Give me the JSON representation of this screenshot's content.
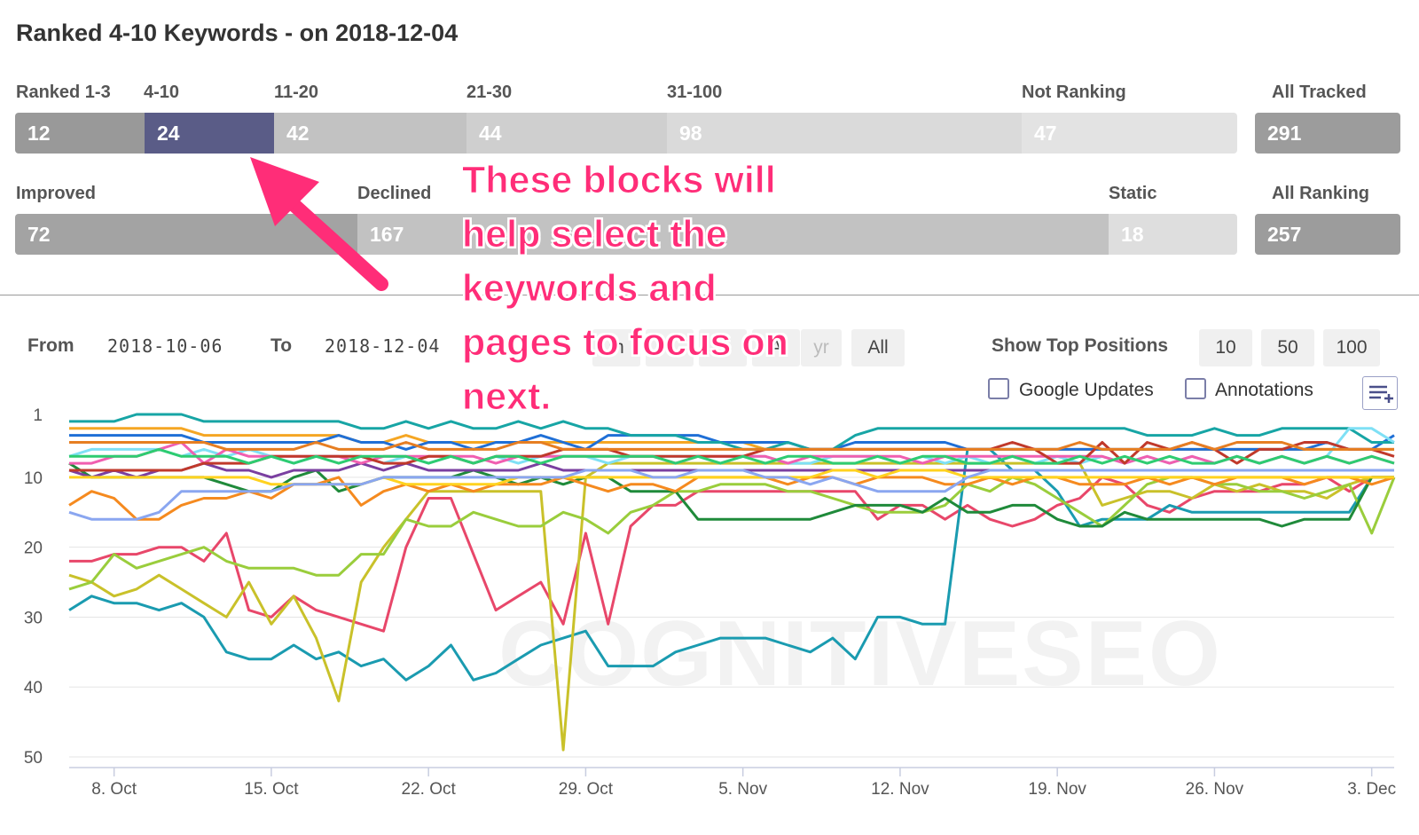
{
  "title": "Ranked 4-10 Keywords - on 2018-12-04",
  "ranking_blocks": [
    {
      "label": "Ranked 1-3",
      "value": "12",
      "color": "#999999"
    },
    {
      "label": "4-10",
      "value": "24",
      "color": "#5a5c87"
    },
    {
      "label": "11-20",
      "value": "42",
      "color": "#c2c2c2"
    },
    {
      "label": "21-30",
      "value": "44",
      "color": "#cfcfcf"
    },
    {
      "label": "31-100",
      "value": "98",
      "color": "#dadada"
    },
    {
      "label": "Not Ranking",
      "value": "47",
      "color": "#e3e3e3"
    }
  ],
  "all_tracked": {
    "label": "All Tracked",
    "value": "291",
    "color": "#9c9c9c"
  },
  "change_blocks": [
    {
      "label": "Improved",
      "value": "72",
      "color": "#a3a3a3"
    },
    {
      "label": "Declined",
      "value": "167",
      "color": "#c2c2c2"
    },
    {
      "label": "Static",
      "value": "18",
      "color": "#dedede"
    }
  ],
  "all_ranking": {
    "label": "All Ranking",
    "value": "257",
    "color": "#9c9c9c"
  },
  "date_range": {
    "from_label": "From",
    "from_value": "2018-10-06",
    "to_label": "To",
    "to_value": "2018-12-04"
  },
  "period_buttons": [
    {
      "label": "m"
    },
    {
      "label": ""
    },
    {
      "label": ""
    },
    {
      "label": "A"
    },
    {
      "label": "yr"
    },
    {
      "label": "All"
    }
  ],
  "top_positions": {
    "label": "Show Top Positions",
    "options": [
      "10",
      "50",
      "100"
    ]
  },
  "toggles": {
    "google_updates": "Google Updates",
    "annotations": "Annotations"
  },
  "watermark": "COGNITIVESEO",
  "annotation_text": [
    "These blocks will",
    "help select the",
    "keywords and",
    "pages to focus on",
    "next."
  ],
  "annotation_color": "#ff2d78",
  "chart_data": {
    "type": "line",
    "x_labels": [
      "8. Oct",
      "15. Oct",
      "22. Oct",
      "29. Oct",
      "5. Nov",
      "12. Nov",
      "19. Nov",
      "26. Nov",
      "3. Dec"
    ],
    "x_range": [
      "2018-10-06",
      "2018-12-04"
    ],
    "y_ticks": [
      1,
      10,
      20,
      30,
      40,
      50
    ],
    "ylim": [
      1,
      50
    ],
    "y_reversed": true,
    "grid": true,
    "series": [
      {
        "color": "#e8476a",
        "values": [
          22,
          22,
          21,
          21,
          20,
          20,
          22,
          18,
          29,
          30,
          27,
          29,
          30,
          31,
          32,
          20,
          13,
          13,
          21,
          29,
          27,
          25,
          31,
          18,
          31,
          17,
          14,
          14,
          12,
          12,
          12,
          12,
          12,
          12,
          12,
          12,
          16,
          14,
          14,
          16,
          14,
          16,
          17,
          16,
          14,
          13,
          10,
          11,
          14,
          15,
          13,
          12,
          12,
          12,
          11,
          11,
          10,
          12,
          10,
          10
        ]
      },
      {
        "color": "#1a9bb0",
        "values": [
          29,
          27,
          28,
          28,
          29,
          28,
          30,
          35,
          36,
          36,
          34,
          36,
          35,
          37,
          36,
          39,
          37,
          34,
          39,
          38,
          36,
          34,
          33,
          32,
          37,
          37,
          37,
          35,
          34,
          33,
          33,
          33,
          34,
          35,
          33,
          36,
          30,
          30,
          31,
          31,
          6,
          6,
          9,
          9,
          12,
          17,
          16,
          16,
          16,
          14,
          15,
          15,
          15,
          15,
          15,
          15,
          15,
          15,
          10,
          10
        ]
      },
      {
        "color": "#c9c12a",
        "values": [
          24,
          25,
          27,
          26,
          24,
          26,
          28,
          30,
          25,
          31,
          27,
          33,
          42,
          25,
          20,
          16,
          12,
          12,
          12,
          12,
          12,
          12,
          49,
          10,
          8,
          8,
          8,
          8,
          8,
          8,
          8,
          8,
          8,
          8,
          8,
          8,
          8,
          8,
          8,
          8,
          8,
          8,
          8,
          8,
          8,
          8,
          14,
          13,
          12,
          12,
          13,
          11,
          12,
          11,
          12,
          12,
          13,
          11,
          10,
          10
        ]
      },
      {
        "color": "#9acd3c",
        "values": [
          26,
          25,
          21,
          23,
          22,
          21,
          20,
          22,
          23,
          23,
          23,
          24,
          24,
          21,
          21,
          16,
          17,
          17,
          15,
          16,
          17,
          17,
          15,
          16,
          18,
          15,
          14,
          12,
          12,
          11,
          11,
          11,
          12,
          12,
          13,
          14,
          15,
          15,
          15,
          14,
          11,
          12,
          10,
          11,
          13,
          15,
          17,
          14,
          11,
          10,
          10,
          11,
          11,
          12,
          12,
          13,
          12,
          11,
          18,
          10
        ]
      },
      {
        "color": "#1f8a3a",
        "values": [
          8,
          10,
          10,
          10,
          10,
          10,
          10,
          11,
          12,
          12,
          10,
          9,
          12,
          11,
          10,
          10,
          10,
          10,
          9,
          10,
          11,
          10,
          11,
          10,
          10,
          12,
          12,
          12,
          16,
          16,
          16,
          16,
          16,
          16,
          15,
          14,
          14,
          14,
          15,
          13,
          15,
          15,
          14,
          14,
          16,
          17,
          17,
          15,
          16,
          16,
          16,
          16,
          16,
          16,
          17,
          16,
          16,
          16,
          10,
          10
        ]
      },
      {
        "color": "#f58a1f",
        "values": [
          14,
          12,
          13,
          16,
          16,
          14,
          13,
          13,
          12,
          13,
          11,
          11,
          10,
          14,
          12,
          11,
          12,
          11,
          12,
          11,
          11,
          11,
          10,
          11,
          12,
          11,
          11,
          12,
          10,
          10,
          10,
          10,
          11,
          10,
          10,
          11,
          10,
          10,
          10,
          11,
          11,
          10,
          11,
          10,
          10,
          11,
          11,
          11,
          10,
          11,
          10,
          11,
          10,
          10,
          10,
          11,
          10,
          10,
          11,
          10
        ]
      },
      {
        "color": "#f5a623",
        "values": [
          3,
          3,
          3,
          3,
          3,
          3,
          4,
          4,
          4,
          4,
          4,
          4,
          4,
          5,
          5,
          4,
          5,
          5,
          5,
          5,
          5,
          5,
          5,
          5,
          5,
          5,
          5,
          5,
          5,
          5,
          5,
          6,
          6,
          6,
          6,
          6,
          6,
          6,
          6,
          6,
          6,
          6,
          6,
          6,
          6,
          6,
          6,
          6,
          6,
          6,
          6,
          6,
          6,
          6,
          6,
          6,
          6,
          6,
          6,
          6
        ]
      },
      {
        "color": "#1f6fd6",
        "values": [
          4,
          4,
          4,
          4,
          4,
          4,
          5,
          5,
          5,
          5,
          5,
          5,
          4,
          5,
          5,
          6,
          5,
          5,
          6,
          5,
          5,
          4,
          5,
          6,
          4,
          4,
          4,
          4,
          4,
          5,
          5,
          5,
          5,
          6,
          6,
          5,
          5,
          5,
          5,
          5,
          6,
          6,
          6,
          6,
          6,
          6,
          6,
          6,
          6,
          6,
          6,
          6,
          6,
          6,
          6,
          6,
          5,
          6,
          6,
          4
        ]
      },
      {
        "color": "#17a5a5",
        "values": [
          2,
          2,
          2,
          1,
          1,
          1,
          2,
          2,
          2,
          2,
          2,
          2,
          2,
          3,
          3,
          2,
          3,
          2,
          3,
          3,
          2,
          3,
          2,
          3,
          3,
          4,
          4,
          4,
          5,
          5,
          6,
          6,
          5,
          6,
          6,
          4,
          3,
          3,
          3,
          3,
          3,
          3,
          3,
          3,
          3,
          3,
          3,
          3,
          4,
          4,
          4,
          3,
          4,
          4,
          3,
          3,
          3,
          3,
          5,
          5
        ]
      },
      {
        "color": "#7fe0f5",
        "values": [
          7,
          6,
          6,
          6,
          6,
          7,
          6,
          7,
          6,
          7,
          8,
          7,
          7,
          7,
          8,
          7,
          8,
          7,
          8,
          7,
          8,
          7,
          7,
          7,
          8,
          7,
          7,
          7,
          7,
          8,
          7,
          7,
          8,
          8,
          7,
          7,
          7,
          8,
          7,
          8,
          7,
          8,
          7,
          8,
          7,
          8,
          7,
          8,
          7,
          8,
          7,
          8,
          7,
          8,
          7,
          8,
          7,
          3,
          3,
          5
        ]
      },
      {
        "color": "#7a3fa0",
        "values": [
          9,
          10,
          9,
          10,
          9,
          9,
          8,
          9,
          9,
          10,
          9,
          9,
          9,
          8,
          9,
          8,
          9,
          9,
          9,
          9,
          9,
          8,
          9,
          9,
          9,
          9,
          9,
          9,
          9,
          9,
          9,
          9,
          9,
          9,
          9,
          9,
          9,
          9,
          9,
          9,
          9,
          9,
          9,
          9,
          9,
          9,
          9,
          9,
          9,
          9,
          9,
          9,
          9,
          9,
          9,
          9,
          9,
          9,
          9,
          9
        ]
      },
      {
        "color": "#f05fb0",
        "values": [
          8,
          8,
          7,
          7,
          6,
          5,
          8,
          6,
          7,
          7,
          7,
          7,
          7,
          8,
          7,
          7,
          7,
          7,
          7,
          8,
          7,
          7,
          7,
          7,
          7,
          7,
          7,
          8,
          7,
          7,
          7,
          7,
          8,
          7,
          7,
          7,
          7,
          7,
          8,
          7,
          7,
          7,
          7,
          7,
          7,
          7,
          7,
          8,
          7,
          8,
          7,
          8,
          7,
          8,
          7,
          8,
          7,
          8,
          7,
          8
        ]
      },
      {
        "color": "#ffd21f",
        "values": [
          10,
          10,
          10,
          10,
          10,
          10,
          10,
          10,
          10,
          11,
          11,
          11,
          11,
          11,
          10,
          11,
          11,
          11,
          11,
          11,
          10,
          10,
          10,
          10,
          10,
          10,
          10,
          10,
          10,
          10,
          10,
          10,
          10,
          10,
          9,
          9,
          10,
          9,
          9,
          9,
          10,
          10,
          10,
          10,
          10,
          10,
          10,
          10,
          10,
          10,
          10,
          10,
          10,
          10,
          10,
          10,
          10,
          10,
          10,
          10
        ]
      },
      {
        "color": "#8aa6f0",
        "values": [
          15,
          16,
          16,
          16,
          15,
          12,
          12,
          12,
          12,
          12,
          11,
          11,
          11,
          11,
          10,
          10,
          10,
          10,
          10,
          10,
          10,
          10,
          10,
          9,
          9,
          9,
          10,
          10,
          9,
          9,
          9,
          10,
          10,
          11,
          10,
          11,
          12,
          12,
          12,
          12,
          10,
          9,
          9,
          9,
          9,
          9,
          9,
          9,
          9,
          9,
          9,
          9,
          9,
          9,
          9,
          9,
          9,
          9,
          9,
          9
        ]
      },
      {
        "color": "#c0392b",
        "values": [
          9,
          9,
          9,
          9,
          9,
          9,
          8,
          8,
          8,
          7,
          7,
          7,
          7,
          7,
          8,
          8,
          7,
          7,
          8,
          7,
          7,
          7,
          6,
          6,
          6,
          7,
          7,
          7,
          7,
          7,
          7,
          6,
          6,
          6,
          6,
          6,
          6,
          6,
          6,
          6,
          6,
          6,
          5,
          6,
          8,
          8,
          5,
          8,
          5,
          6,
          5,
          6,
          8,
          6,
          6,
          5,
          5,
          6,
          6,
          7
        ]
      },
      {
        "color": "#e67e22",
        "values": [
          5,
          5,
          5,
          5,
          5,
          5,
          5,
          6,
          6,
          6,
          6,
          5,
          6,
          6,
          6,
          5,
          6,
          6,
          6,
          6,
          5,
          5,
          6,
          6,
          6,
          6,
          6,
          6,
          6,
          6,
          6,
          6,
          6,
          6,
          6,
          6,
          6,
          6,
          6,
          6,
          6,
          6,
          6,
          6,
          6,
          5,
          6,
          6,
          6,
          6,
          5,
          6,
          5,
          5,
          5,
          6,
          6,
          6,
          6,
          6
        ]
      },
      {
        "color": "#2ecc71",
        "values": [
          7,
          7,
          7,
          7,
          6,
          7,
          7,
          7,
          8,
          7,
          8,
          7,
          8,
          7,
          7,
          7,
          8,
          7,
          8,
          7,
          7,
          8,
          7,
          7,
          7,
          7,
          7,
          8,
          7,
          8,
          7,
          8,
          7,
          7,
          8,
          8,
          7,
          8,
          7,
          7,
          8,
          8,
          7,
          8,
          8,
          7,
          8,
          7,
          8,
          7,
          8,
          8,
          7,
          8,
          7,
          8,
          7,
          8,
          7,
          8
        ]
      }
    ]
  }
}
